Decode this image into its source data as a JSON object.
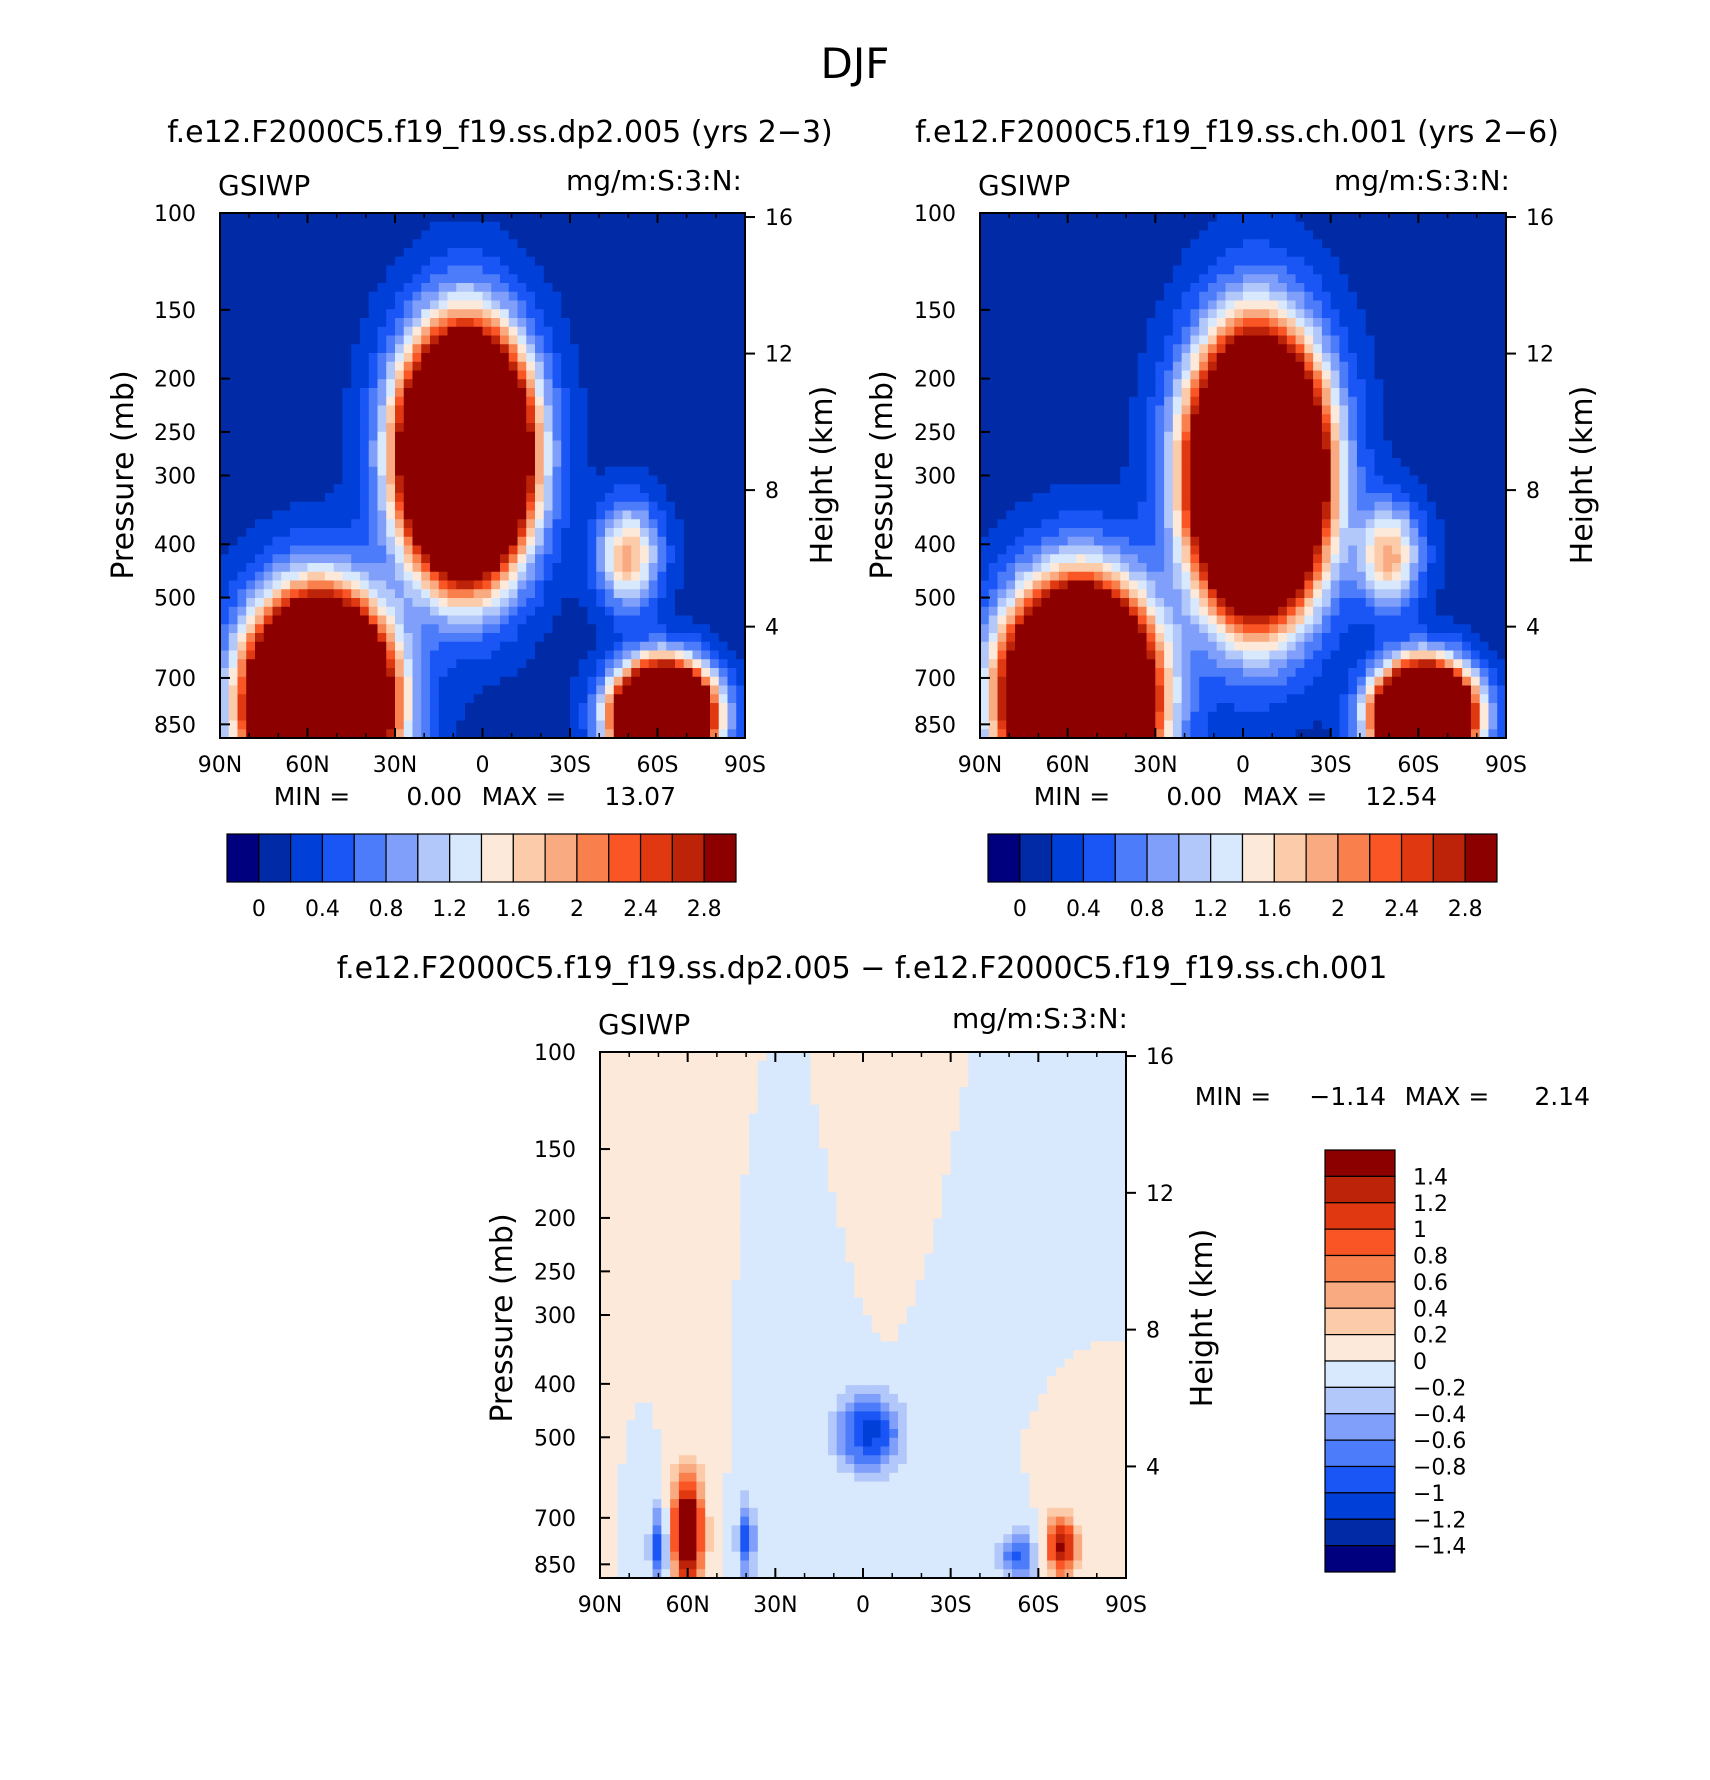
{
  "figure": {
    "title": "DJF"
  },
  "colormaps": {
    "abs": [
      "#00007f",
      "#002aa6",
      "#0040d9",
      "#1a55f5",
      "#4d7cfa",
      "#809ffa",
      "#b3c8fa",
      "#d9e9fd",
      "#fde9d9",
      "#fccbaa",
      "#faaa80",
      "#f9804d",
      "#fa5525",
      "#e03811",
      "#bd2308",
      "#8d0000"
    ],
    "diff": [
      "#00007f",
      "#002aa6",
      "#0040d9",
      "#1a55f5",
      "#4d7cfa",
      "#809ffa",
      "#b3c8fa",
      "#d9e9fd",
      "#fde9d9",
      "#fccbaa",
      "#faaa80",
      "#f9804d",
      "#fa5525",
      "#e03811",
      "#bd2308",
      "#8d0000"
    ]
  },
  "chart_data": [
    {
      "type": "heatmap",
      "title": "f.e12.F2000C5.f19_f19.ss.dp2.005 (yrs 2−3)",
      "left_label": "GSIWP",
      "right_label": "mg/m:S:3:N:",
      "ylabel": "Pressure (mb)",
      "ylabel_right": "Height (km)",
      "xticks": [
        "90N",
        "60N",
        "30N",
        "0",
        "30S",
        "60S",
        "90S"
      ],
      "yticks": [
        "100",
        "150",
        "200",
        "250",
        "300",
        "400",
        "500",
        "700",
        "850"
      ],
      "ylim": [
        100,
        900
      ],
      "yscale": "log",
      "height_ticks": [
        "16",
        "12",
        "8",
        "4"
      ],
      "min_label": "MIN =",
      "min": "0.00",
      "max_label": "MAX =",
      "max": "13.07",
      "colorbar_labels": [
        "0",
        "0.4",
        "0.8",
        "1.2",
        "1.6",
        "2",
        "2.4",
        "2.8"
      ],
      "features": [
        {
          "lat": 6,
          "p": 275,
          "lat_halfwidth": 18,
          "p_halfwidth": 0.42,
          "peak": 13.0
        },
        {
          "lat": 56,
          "p": 780,
          "lat_halfwidth": 20,
          "p_halfwidth": 0.36,
          "peak": 13.0
        },
        {
          "lat": -62,
          "p": 820,
          "lat_halfwidth": 14,
          "p_halfwidth": 0.18,
          "peak": 11.0
        },
        {
          "lat": -50,
          "p": 420,
          "lat_halfwidth": 10,
          "p_halfwidth": 0.2,
          "peak": 1.7
        }
      ]
    },
    {
      "type": "heatmap",
      "title": "f.e12.F2000C5.f19_f19.ss.ch.001 (yrs 2−6)",
      "left_label": "GSIWP",
      "right_label": "mg/m:S:3:N:",
      "ylabel": "Pressure (mb)",
      "ylabel_right": "Height (km)",
      "xticks": [
        "90N",
        "60N",
        "30N",
        "0",
        "30S",
        "60S",
        "90S"
      ],
      "yticks": [
        "100",
        "150",
        "200",
        "250",
        "300",
        "400",
        "500",
        "700",
        "850"
      ],
      "ylim": [
        100,
        900
      ],
      "yscale": "log",
      "height_ticks": [
        "16",
        "12",
        "8",
        "4"
      ],
      "min_label": "MIN =",
      "min": "0.00",
      "max_label": "MAX =",
      "max": "12.54",
      "colorbar_labels": [
        "0",
        "0.4",
        "0.8",
        "1.2",
        "1.6",
        "2",
        "2.4",
        "2.8"
      ],
      "features": [
        {
          "lat": -5,
          "p": 300,
          "lat_halfwidth": 19,
          "p_halfwidth": 0.48,
          "peak": 12.5
        },
        {
          "lat": 56,
          "p": 760,
          "lat_halfwidth": 21,
          "p_halfwidth": 0.38,
          "peak": 12.5
        },
        {
          "lat": -62,
          "p": 820,
          "lat_halfwidth": 14,
          "p_halfwidth": 0.18,
          "peak": 11.0
        },
        {
          "lat": -50,
          "p": 420,
          "lat_halfwidth": 10,
          "p_halfwidth": 0.2,
          "peak": 1.7
        }
      ]
    },
    {
      "type": "heatmap",
      "title": "f.e12.F2000C5.f19_f19.ss.dp2.005 − f.e12.F2000C5.f19_f19.ss.ch.001",
      "left_label": "GSIWP",
      "right_label": "mg/m:S:3:N:",
      "ylabel": "Pressure (mb)",
      "ylabel_right": "Height (km)",
      "xticks": [
        "90N",
        "60N",
        "30N",
        "0",
        "30S",
        "60S",
        "90S"
      ],
      "yticks": [
        "100",
        "150",
        "200",
        "250",
        "300",
        "400",
        "500",
        "700",
        "850"
      ],
      "ylim": [
        100,
        900
      ],
      "yscale": "log",
      "height_ticks": [
        "16",
        "12",
        "8",
        "4"
      ],
      "min_label": "MIN =",
      "min": "−1.14",
      "max_label": "MAX =",
      "max": "2.14",
      "colorbar_labels": [
        "1.4",
        "1.2",
        "1",
        "0.8",
        "0.6",
        "0.4",
        "0.2",
        "0",
        "−0.2",
        "−0.4",
        "−0.6",
        "−0.8",
        "−1",
        "−1.2",
        "−1.4"
      ],
      "features": [
        {
          "lat": 60,
          "p": 740,
          "lat_halfwidth": 5,
          "p_halfwidth": 0.22,
          "peak": 2.1
        },
        {
          "lat": -68,
          "p": 790,
          "lat_halfwidth": 5,
          "p_halfwidth": 0.12,
          "peak": 1.5
        },
        {
          "lat": -2,
          "p": 490,
          "lat_halfwidth": 11,
          "p_halfwidth": 0.16,
          "peak": -1.1
        },
        {
          "lat": 70,
          "p": 790,
          "lat_halfwidth": 3,
          "p_halfwidth": 0.18,
          "peak": -0.9
        },
        {
          "lat": 40,
          "p": 770,
          "lat_halfwidth": 3,
          "p_halfwidth": 0.16,
          "peak": -0.9
        },
        {
          "lat": -53,
          "p": 820,
          "lat_halfwidth": 6,
          "p_halfwidth": 0.1,
          "peak": -0.9
        },
        {
          "lat": -8,
          "p": 220,
          "lat_halfwidth": 3,
          "p_halfwidth": 0.2,
          "peak": 0.15
        }
      ]
    }
  ]
}
